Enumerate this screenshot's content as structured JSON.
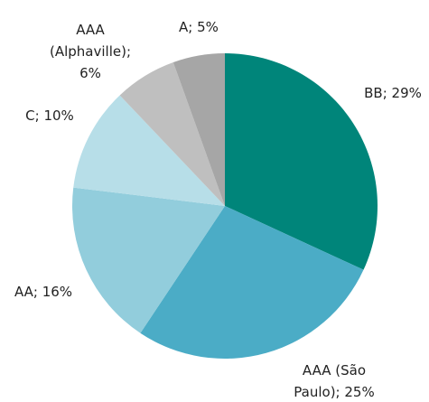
{
  "chart_data": {
    "type": "pie",
    "labels": [
      "BB; 29%",
      "AAA (São Paulo); 25%",
      "AA; 16%",
      "C; 10%",
      "AAA (Alphaville); 6%",
      "A; 5%"
    ],
    "values": [
      29,
      25,
      16,
      10,
      6,
      5
    ],
    "colors": [
      "#00857a",
      "#4bacc6",
      "#92cddc",
      "#b7dee8",
      "#bfbfbf",
      "#a6a6a6"
    ]
  }
}
